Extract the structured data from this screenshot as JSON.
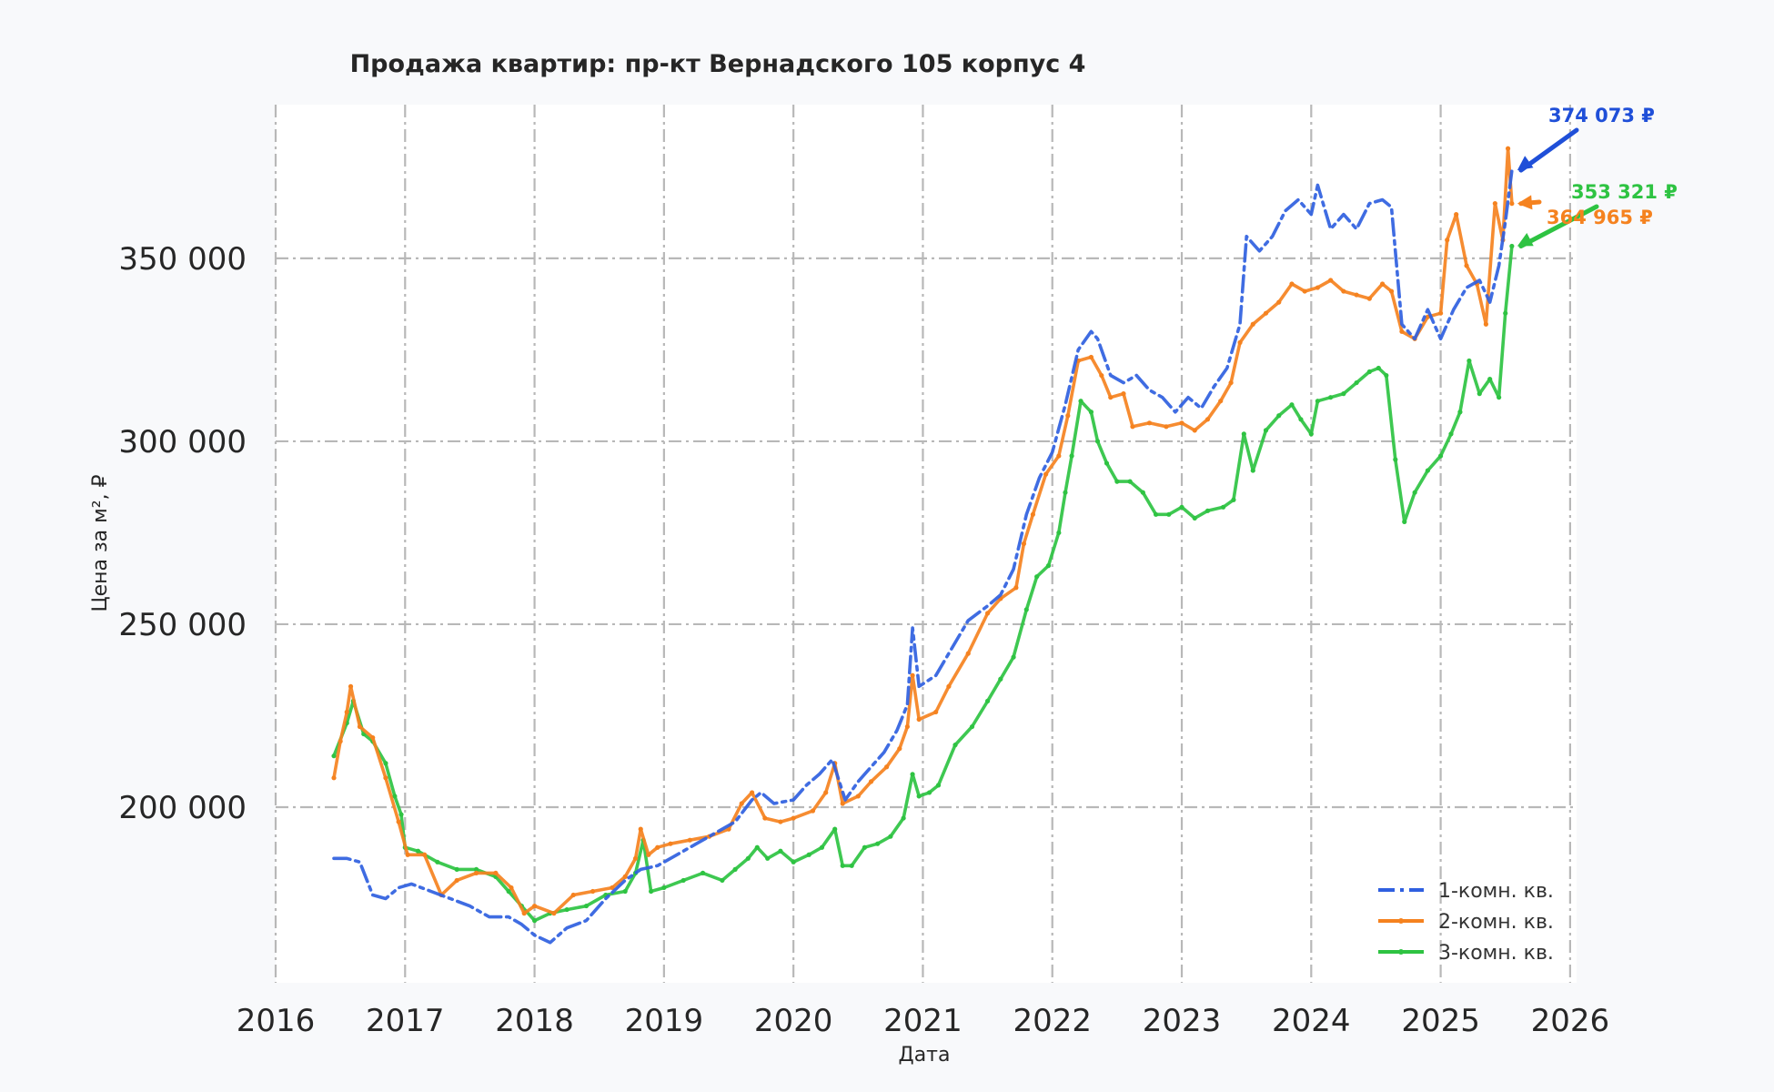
{
  "chart_data": {
    "type": "line",
    "title": "Продажа квартир: пр-кт Вернадского 105 корпус 4",
    "xlabel": "Дата",
    "ylabel": "Цена за м², ₽",
    "xlim": [
      2016.0,
      2026.05
    ],
    "ylim": [
      152000,
      392000
    ],
    "x_ticks": [
      "2016",
      "2017",
      "2018",
      "2019",
      "2020",
      "2021",
      "2022",
      "2023",
      "2024",
      "2025",
      "2026"
    ],
    "y_ticks": [
      "200 000",
      "250 000",
      "300 000",
      "350 000"
    ],
    "grid": true,
    "legend_position": "bottom-right",
    "series": [
      {
        "name": "1-комн. кв.",
        "color": "#2f5fe0",
        "style": "dashdot",
        "points": [
          [
            2016.45,
            186000
          ],
          [
            2016.55,
            186000
          ],
          [
            2016.65,
            185000
          ],
          [
            2016.75,
            176000
          ],
          [
            2016.85,
            175000
          ],
          [
            2016.95,
            178000
          ],
          [
            2017.05,
            179000
          ],
          [
            2017.2,
            177000
          ],
          [
            2017.35,
            175000
          ],
          [
            2017.5,
            173000
          ],
          [
            2017.65,
            170000
          ],
          [
            2017.8,
            170000
          ],
          [
            2017.9,
            168000
          ],
          [
            2018.0,
            165000
          ],
          [
            2018.12,
            163000
          ],
          [
            2018.25,
            167000
          ],
          [
            2018.4,
            169000
          ],
          [
            2018.55,
            175000
          ],
          [
            2018.7,
            180000
          ],
          [
            2018.82,
            183000
          ],
          [
            2018.95,
            184000
          ],
          [
            2019.1,
            187000
          ],
          [
            2019.25,
            190000
          ],
          [
            2019.4,
            193000
          ],
          [
            2019.55,
            196000
          ],
          [
            2019.68,
            202000
          ],
          [
            2019.75,
            204000
          ],
          [
            2019.85,
            201000
          ],
          [
            2020.0,
            202000
          ],
          [
            2020.1,
            206000
          ],
          [
            2020.2,
            209000
          ],
          [
            2020.3,
            213000
          ],
          [
            2020.4,
            202000
          ],
          [
            2020.5,
            207000
          ],
          [
            2020.6,
            211000
          ],
          [
            2020.7,
            215000
          ],
          [
            2020.8,
            221000
          ],
          [
            2020.88,
            228000
          ],
          [
            2020.92,
            249000
          ],
          [
            2020.97,
            233000
          ],
          [
            2021.1,
            236000
          ],
          [
            2021.2,
            242000
          ],
          [
            2021.35,
            251000
          ],
          [
            2021.5,
            255000
          ],
          [
            2021.6,
            258000
          ],
          [
            2021.7,
            265000
          ],
          [
            2021.8,
            280000
          ],
          [
            2021.9,
            290000
          ],
          [
            2022.0,
            297000
          ],
          [
            2022.1,
            310000
          ],
          [
            2022.2,
            325000
          ],
          [
            2022.3,
            330000
          ],
          [
            2022.35,
            328000
          ],
          [
            2022.45,
            318000
          ],
          [
            2022.55,
            316000
          ],
          [
            2022.65,
            318000
          ],
          [
            2022.75,
            314000
          ],
          [
            2022.85,
            312000
          ],
          [
            2022.95,
            308000
          ],
          [
            2023.05,
            312000
          ],
          [
            2023.15,
            309000
          ],
          [
            2023.25,
            315000
          ],
          [
            2023.35,
            320000
          ],
          [
            2023.45,
            332000
          ],
          [
            2023.5,
            356000
          ],
          [
            2023.6,
            352000
          ],
          [
            2023.7,
            356000
          ],
          [
            2023.8,
            363000
          ],
          [
            2023.9,
            366000
          ],
          [
            2024.0,
            362000
          ],
          [
            2024.05,
            370000
          ],
          [
            2024.15,
            358000
          ],
          [
            2024.25,
            362000
          ],
          [
            2024.35,
            358000
          ],
          [
            2024.45,
            365000
          ],
          [
            2024.55,
            366000
          ],
          [
            2024.62,
            364000
          ],
          [
            2024.7,
            332000
          ],
          [
            2024.8,
            328000
          ],
          [
            2024.9,
            336000
          ],
          [
            2025.0,
            328000
          ],
          [
            2025.1,
            336000
          ],
          [
            2025.2,
            342000
          ],
          [
            2025.3,
            344000
          ],
          [
            2025.38,
            338000
          ],
          [
            2025.45,
            348000
          ],
          [
            2025.5,
            360000
          ],
          [
            2025.55,
            374073
          ]
        ]
      },
      {
        "name": "2-комн. кв.",
        "color": "#f5821f",
        "style": "solid-marker",
        "points": [
          [
            2016.45,
            208000
          ],
          [
            2016.5,
            218000
          ],
          [
            2016.55,
            226000
          ],
          [
            2016.58,
            233000
          ],
          [
            2016.65,
            222000
          ],
          [
            2016.75,
            219000
          ],
          [
            2016.85,
            208000
          ],
          [
            2016.95,
            196000
          ],
          [
            2017.02,
            187000
          ],
          [
            2017.15,
            187000
          ],
          [
            2017.28,
            176000
          ],
          [
            2017.4,
            180000
          ],
          [
            2017.55,
            182000
          ],
          [
            2017.7,
            182000
          ],
          [
            2017.82,
            178000
          ],
          [
            2017.92,
            171000
          ],
          [
            2018.0,
            173000
          ],
          [
            2018.15,
            171000
          ],
          [
            2018.3,
            176000
          ],
          [
            2018.45,
            177000
          ],
          [
            2018.6,
            178000
          ],
          [
            2018.7,
            181000
          ],
          [
            2018.78,
            186000
          ],
          [
            2018.82,
            194000
          ],
          [
            2018.88,
            187000
          ],
          [
            2018.95,
            189000
          ],
          [
            2019.05,
            190000
          ],
          [
            2019.2,
            191000
          ],
          [
            2019.35,
            192000
          ],
          [
            2019.5,
            194000
          ],
          [
            2019.6,
            201000
          ],
          [
            2019.68,
            204000
          ],
          [
            2019.78,
            197000
          ],
          [
            2019.9,
            196000
          ],
          [
            2020.0,
            197000
          ],
          [
            2020.15,
            199000
          ],
          [
            2020.25,
            204000
          ],
          [
            2020.32,
            212000
          ],
          [
            2020.38,
            201000
          ],
          [
            2020.5,
            203000
          ],
          [
            2020.6,
            207000
          ],
          [
            2020.72,
            211000
          ],
          [
            2020.82,
            216000
          ],
          [
            2020.88,
            222000
          ],
          [
            2020.92,
            236000
          ],
          [
            2020.97,
            224000
          ],
          [
            2021.1,
            226000
          ],
          [
            2021.2,
            233000
          ],
          [
            2021.35,
            242000
          ],
          [
            2021.5,
            253000
          ],
          [
            2021.6,
            257000
          ],
          [
            2021.72,
            260000
          ],
          [
            2021.78,
            272000
          ],
          [
            2021.85,
            280000
          ],
          [
            2021.95,
            291000
          ],
          [
            2022.05,
            296000
          ],
          [
            2022.12,
            307000
          ],
          [
            2022.2,
            322000
          ],
          [
            2022.3,
            323000
          ],
          [
            2022.38,
            318000
          ],
          [
            2022.45,
            312000
          ],
          [
            2022.55,
            313000
          ],
          [
            2022.62,
            304000
          ],
          [
            2022.75,
            305000
          ],
          [
            2022.88,
            304000
          ],
          [
            2023.0,
            305000
          ],
          [
            2023.1,
            303000
          ],
          [
            2023.2,
            306000
          ],
          [
            2023.3,
            311000
          ],
          [
            2023.38,
            316000
          ],
          [
            2023.45,
            327000
          ],
          [
            2023.55,
            332000
          ],
          [
            2023.65,
            335000
          ],
          [
            2023.75,
            338000
          ],
          [
            2023.85,
            343000
          ],
          [
            2023.95,
            341000
          ],
          [
            2024.05,
            342000
          ],
          [
            2024.15,
            344000
          ],
          [
            2024.25,
            341000
          ],
          [
            2024.35,
            340000
          ],
          [
            2024.45,
            339000
          ],
          [
            2024.55,
            343000
          ],
          [
            2024.62,
            341000
          ],
          [
            2024.7,
            330000
          ],
          [
            2024.8,
            328000
          ],
          [
            2024.9,
            334000
          ],
          [
            2025.0,
            335000
          ],
          [
            2025.05,
            355000
          ],
          [
            2025.12,
            362000
          ],
          [
            2025.2,
            348000
          ],
          [
            2025.28,
            343000
          ],
          [
            2025.35,
            332000
          ],
          [
            2025.42,
            365000
          ],
          [
            2025.48,
            355000
          ],
          [
            2025.52,
            380000
          ],
          [
            2025.55,
            364965
          ]
        ]
      },
      {
        "name": "3-комн. кв.",
        "color": "#2ec342",
        "style": "solid-marker",
        "points": [
          [
            2016.45,
            214000
          ],
          [
            2016.55,
            223000
          ],
          [
            2016.6,
            229000
          ],
          [
            2016.68,
            220000
          ],
          [
            2016.75,
            218000
          ],
          [
            2016.85,
            212000
          ],
          [
            2016.92,
            203000
          ],
          [
            2016.97,
            198000
          ],
          [
            2017.0,
            189000
          ],
          [
            2017.1,
            188000
          ],
          [
            2017.25,
            185000
          ],
          [
            2017.4,
            183000
          ],
          [
            2017.55,
            183000
          ],
          [
            2017.7,
            181000
          ],
          [
            2017.8,
            177000
          ],
          [
            2017.9,
            173000
          ],
          [
            2018.0,
            169000
          ],
          [
            2018.12,
            171000
          ],
          [
            2018.25,
            172000
          ],
          [
            2018.4,
            173000
          ],
          [
            2018.55,
            176000
          ],
          [
            2018.7,
            177000
          ],
          [
            2018.78,
            182000
          ],
          [
            2018.84,
            191000
          ],
          [
            2018.9,
            177000
          ],
          [
            2019.0,
            178000
          ],
          [
            2019.15,
            180000
          ],
          [
            2019.3,
            182000
          ],
          [
            2019.45,
            180000
          ],
          [
            2019.55,
            183000
          ],
          [
            2019.65,
            186000
          ],
          [
            2019.72,
            189000
          ],
          [
            2019.8,
            186000
          ],
          [
            2019.9,
            188000
          ],
          [
            2020.0,
            185000
          ],
          [
            2020.12,
            187000
          ],
          [
            2020.22,
            189000
          ],
          [
            2020.32,
            194000
          ],
          [
            2020.38,
            184000
          ],
          [
            2020.45,
            184000
          ],
          [
            2020.55,
            189000
          ],
          [
            2020.65,
            190000
          ],
          [
            2020.75,
            192000
          ],
          [
            2020.85,
            197000
          ],
          [
            2020.92,
            209000
          ],
          [
            2020.97,
            203000
          ],
          [
            2021.05,
            204000
          ],
          [
            2021.12,
            206000
          ],
          [
            2021.25,
            217000
          ],
          [
            2021.38,
            222000
          ],
          [
            2021.5,
            229000
          ],
          [
            2021.6,
            235000
          ],
          [
            2021.7,
            241000
          ],
          [
            2021.8,
            254000
          ],
          [
            2021.88,
            263000
          ],
          [
            2021.97,
            266000
          ],
          [
            2022.05,
            275000
          ],
          [
            2022.1,
            286000
          ],
          [
            2022.15,
            296000
          ],
          [
            2022.22,
            311000
          ],
          [
            2022.3,
            308000
          ],
          [
            2022.35,
            300000
          ],
          [
            2022.42,
            294000
          ],
          [
            2022.5,
            289000
          ],
          [
            2022.6,
            289000
          ],
          [
            2022.7,
            286000
          ],
          [
            2022.8,
            280000
          ],
          [
            2022.9,
            280000
          ],
          [
            2023.0,
            282000
          ],
          [
            2023.1,
            279000
          ],
          [
            2023.2,
            281000
          ],
          [
            2023.32,
            282000
          ],
          [
            2023.4,
            284000
          ],
          [
            2023.48,
            302000
          ],
          [
            2023.55,
            292000
          ],
          [
            2023.65,
            303000
          ],
          [
            2023.75,
            307000
          ],
          [
            2023.85,
            310000
          ],
          [
            2023.92,
            306000
          ],
          [
            2024.0,
            302000
          ],
          [
            2024.05,
            311000
          ],
          [
            2024.15,
            312000
          ],
          [
            2024.25,
            313000
          ],
          [
            2024.35,
            316000
          ],
          [
            2024.45,
            319000
          ],
          [
            2024.52,
            320000
          ],
          [
            2024.58,
            318000
          ],
          [
            2024.65,
            295000
          ],
          [
            2024.72,
            278000
          ],
          [
            2024.8,
            286000
          ],
          [
            2024.9,
            292000
          ],
          [
            2025.0,
            296000
          ],
          [
            2025.08,
            302000
          ],
          [
            2025.15,
            308000
          ],
          [
            2025.22,
            322000
          ],
          [
            2025.3,
            313000
          ],
          [
            2025.38,
            317000
          ],
          [
            2025.45,
            312000
          ],
          [
            2025.5,
            335000
          ],
          [
            2025.55,
            353321
          ]
        ]
      }
    ],
    "annotations": [
      {
        "text": "374 073 ₽",
        "color": "#1f4fd8",
        "x": 2025.55,
        "y": 374073
      },
      {
        "text": "353 321 ₽",
        "color": "#2ec342",
        "x": 2025.55,
        "y": 353321
      },
      {
        "text": "364 965 ₽",
        "color": "#f5821f",
        "x": 2025.55,
        "y": 364965
      }
    ]
  }
}
